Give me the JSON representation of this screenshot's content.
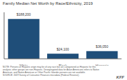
{
  "chart_data": {
    "type": "bar",
    "title": "Family Median Net Worth by Race/Ethnicity, 2019",
    "categories": [
      "White",
      "Black",
      "Hispanic"
    ],
    "values": [
      188200,
      24100,
      36050
    ],
    "value_labels": [
      "$188,200",
      "$24,100",
      "$36,050"
    ],
    "data_labels": true,
    "color": "#1f4e79",
    "ylim": [
      0,
      220000
    ],
    "yticks": [],
    "tick_labels": "x",
    "grid": false,
    "annotations": [
      "NOTE: Persons of Hispanic origin may be of any race but are categorized as Hispanic for this\nanalysis; other groups are non-Hispanic. Desegregated data for Asian Americans refers to Native\nAmerican, and Native American or Other Pacific Islander persons are not available.\nSOURCE: 2019 Survey of Consumer Finances microdata (Federal Reserve).",
      "KFF"
    ]
  }
}
